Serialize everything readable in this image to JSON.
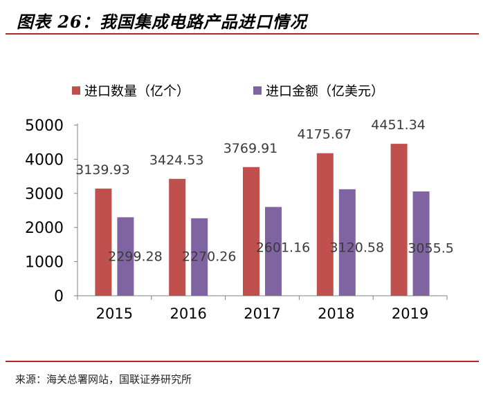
{
  "figure": {
    "title": "图表 26：我国集成电路产品进口情况",
    "source": "来源：海关总署网站，国联证券研究所"
  },
  "colors": {
    "accent_rule": "#b1282c"
  },
  "chart_data": {
    "type": "bar",
    "categories": [
      "2015",
      "2016",
      "2017",
      "2018",
      "2019"
    ],
    "series": [
      {
        "name": "进口数量（亿个）",
        "color": "#c0504d",
        "values": [
          3139.93,
          3424.53,
          3769.91,
          4175.67,
          4451.34
        ],
        "labels": [
          "3139.93",
          "3424.53",
          "3769.91",
          "4175.67",
          "4451.34"
        ]
      },
      {
        "name": "进口金额（亿美元）",
        "color": "#8064a2",
        "values": [
          2299.28,
          2270.26,
          2601.16,
          3120.58,
          3055.5
        ],
        "labels": [
          "2299.28",
          "2270.26",
          "2601.16",
          "3120.58",
          "3055.5"
        ]
      }
    ],
    "yticks": [
      "0",
      "1000",
      "2000",
      "3000",
      "4000",
      "5000"
    ],
    "ylim": [
      0,
      5000
    ],
    "grid": false,
    "legend_position": "top"
  }
}
